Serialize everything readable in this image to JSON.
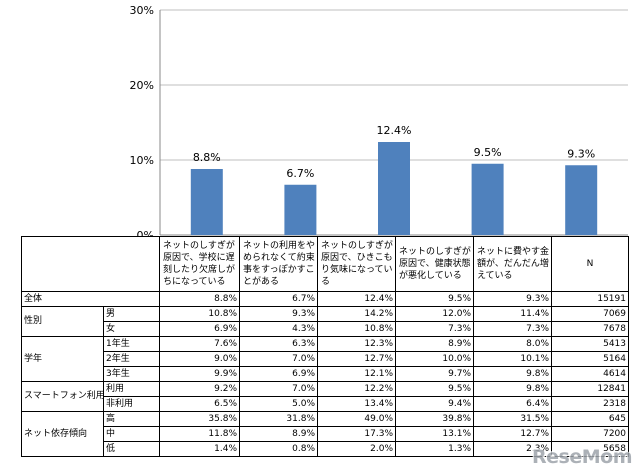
{
  "chart_data": {
    "type": "bar",
    "categories": [
      "ネットのしすぎが原因で、学校に遅刻したり欠席しがちになっている",
      "ネットの利用をやめられなくて約束事をすっぽかすことがある",
      "ネットのしすぎが原因で、ひきこもり気味になっている",
      "ネットのしすぎが原因で、健康状態が悪化している",
      "ネットに費やす金額が、だんだん増えている"
    ],
    "values": [
      8.8,
      6.7,
      12.4,
      9.5,
      9.3
    ],
    "value_labels": [
      "8.8%",
      "6.7%",
      "12.4%",
      "9.5%",
      "9.3%"
    ],
    "ylim": [
      0,
      30
    ],
    "yticks": [
      0,
      10,
      20,
      30
    ],
    "ytick_labels": [
      "0%",
      "10%",
      "20%",
      "30%"
    ],
    "bar_color": "#4f81bd",
    "title": "",
    "xlabel": "",
    "ylabel": ""
  },
  "table": {
    "headers": [
      "ネットのしすぎが原因で、学校に遅刻したり欠席しがちになっている",
      "ネットの利用をやめられなくて約束事をすっぽかすことがある",
      "ネットのしすぎが原因で、ひきこもり気味になっている",
      "ネットのしすぎが原因で、健康状態が悪化している",
      "ネットに費やす金額が、だんだん増えている"
    ],
    "n_header": "N",
    "total": {
      "label": "全体",
      "values": [
        "8.8%",
        "6.7%",
        "12.4%",
        "9.5%",
        "9.3%"
      ],
      "n": "15191"
    },
    "groups": [
      {
        "label": "性別",
        "rows": [
          {
            "label": "男",
            "values": [
              "10.8%",
              "9.3%",
              "14.2%",
              "12.0%",
              "11.4%"
            ],
            "n": "7069"
          },
          {
            "label": "女",
            "values": [
              "6.9%",
              "4.3%",
              "10.8%",
              "7.3%",
              "7.3%"
            ],
            "n": "7678"
          }
        ]
      },
      {
        "label": "学年",
        "rows": [
          {
            "label": "1年生",
            "values": [
              "7.6%",
              "6.3%",
              "12.3%",
              "8.9%",
              "8.0%"
            ],
            "n": "5413"
          },
          {
            "label": "2年生",
            "values": [
              "9.0%",
              "7.0%",
              "12.7%",
              "10.0%",
              "10.1%"
            ],
            "n": "5164"
          },
          {
            "label": "3年生",
            "values": [
              "9.9%",
              "6.9%",
              "12.1%",
              "9.7%",
              "9.8%"
            ],
            "n": "4614"
          }
        ]
      },
      {
        "label": "スマートフォン利用",
        "rows": [
          {
            "label": "利用",
            "values": [
              "9.2%",
              "7.0%",
              "12.2%",
              "9.5%",
              "9.8%"
            ],
            "n": "12841"
          },
          {
            "label": "非利用",
            "values": [
              "6.5%",
              "5.0%",
              "13.4%",
              "9.4%",
              "6.4%"
            ],
            "n": "2318"
          }
        ]
      },
      {
        "label": "ネット依存傾向",
        "rows": [
          {
            "label": "高",
            "values": [
              "35.8%",
              "31.8%",
              "49.0%",
              "39.8%",
              "31.5%"
            ],
            "n": "645"
          },
          {
            "label": "中",
            "values": [
              "11.8%",
              "8.9%",
              "17.3%",
              "13.1%",
              "12.7%"
            ],
            "n": "7200"
          },
          {
            "label": "低",
            "values": [
              "1.4%",
              "0.8%",
              "2.0%",
              "1.3%",
              "2.3%"
            ],
            "n": "5658"
          }
        ]
      }
    ]
  },
  "watermark": "ReseMom"
}
